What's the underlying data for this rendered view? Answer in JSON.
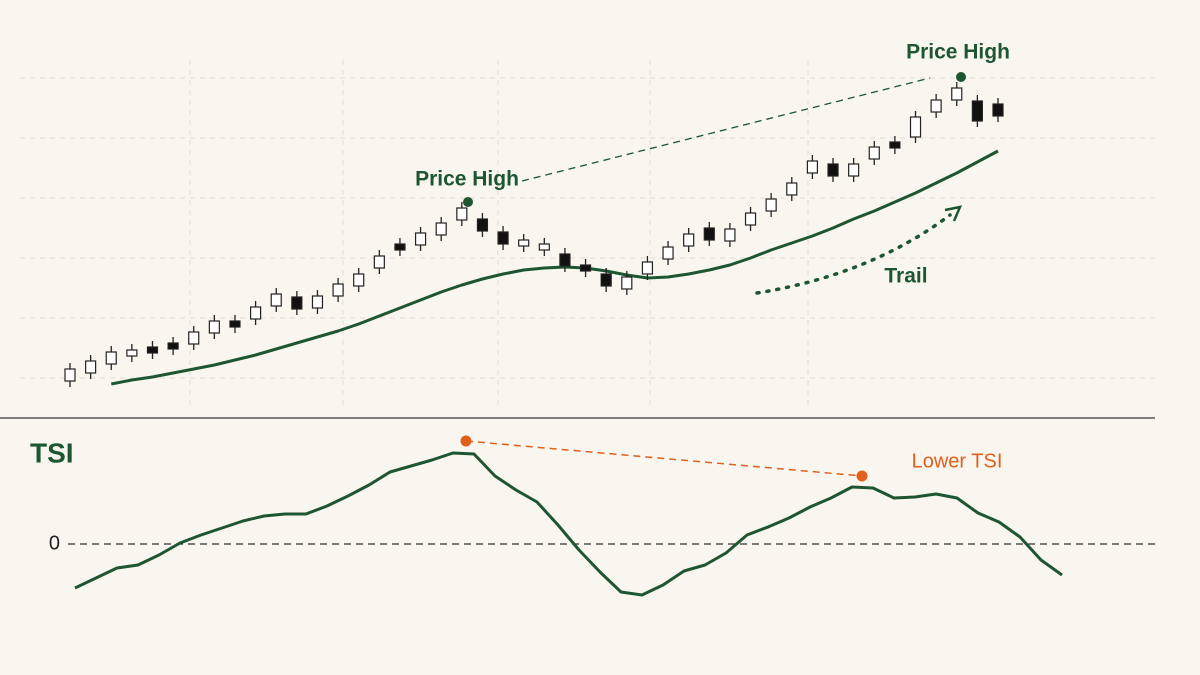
{
  "chart_data": [
    {
      "type": "candlestick",
      "categories": [
        null,
        null,
        null,
        null,
        null,
        null,
        null,
        null,
        null,
        null,
        null,
        null,
        null,
        null,
        null,
        null,
        null,
        null,
        null,
        null,
        null,
        null,
        null,
        null,
        null,
        null,
        null,
        null,
        null,
        null,
        null,
        null,
        null,
        null,
        null,
        null,
        null,
        null,
        null,
        null,
        null,
        null,
        null,
        null,
        null,
        null
      ],
      "open": [
        1.9,
        2.7,
        3.6,
        4.4,
        5.3,
        5.7,
        5.6,
        6.7,
        7.9,
        8.1,
        9.4,
        10.3,
        9.2,
        10.4,
        11.4,
        13.2,
        15.6,
        15.5,
        16.5,
        18.0,
        18.1,
        16.8,
        15.4,
        15.0,
        14.6,
        13.5,
        12.6,
        11.1,
        12.6,
        14.1,
        15.4,
        17.2,
        15.9,
        17.5,
        18.9,
        20.5,
        22.7,
        23.6,
        22.4,
        24.1,
        25.8,
        26.3,
        28.8,
        30.0,
        29.9,
        29.6
      ],
      "high": [
        3.7,
        4.5,
        5.4,
        5.6,
        5.9,
        6.3,
        7.4,
        8.5,
        8.5,
        9.9,
        11.2,
        10.9,
        11.0,
        12.2,
        13.2,
        15.0,
        16.2,
        17.3,
        18.3,
        19.8,
        18.7,
        17.4,
        16.6,
        16.2,
        15.2,
        14.1,
        13.2,
        12.9,
        14.4,
        15.9,
        17.2,
        17.8,
        17.7,
        19.3,
        20.7,
        22.3,
        24.5,
        24.2,
        24.2,
        25.9,
        26.4,
        28.9,
        30.6,
        31.8,
        30.5,
        30.2
      ],
      "low": [
        1.3,
        2.1,
        3.0,
        3.8,
        4.1,
        4.5,
        5.0,
        6.1,
        6.7,
        7.5,
        8.8,
        8.5,
        8.6,
        9.8,
        10.8,
        12.6,
        14.4,
        14.9,
        15.9,
        17.4,
        16.3,
        15.0,
        14.8,
        14.4,
        12.8,
        12.3,
        10.8,
        10.5,
        12.0,
        13.5,
        14.8,
        15.4,
        15.3,
        16.9,
        18.3,
        19.9,
        22.1,
        21.8,
        21.8,
        23.5,
        24.6,
        25.7,
        28.2,
        29.4,
        27.3,
        27.8
      ],
      "close": [
        3.1,
        3.9,
        4.8,
        5.0,
        4.7,
        5.1,
        6.8,
        7.9,
        7.3,
        9.3,
        10.6,
        9.1,
        10.4,
        11.6,
        12.6,
        14.4,
        15.0,
        16.7,
        17.7,
        19.2,
        16.9,
        15.6,
        16.0,
        15.6,
        13.4,
        12.9,
        11.4,
        12.3,
        13.8,
        15.3,
        16.6,
        16.0,
        17.1,
        18.7,
        20.1,
        21.7,
        23.9,
        22.4,
        23.6,
        25.3,
        25.2,
        28.3,
        30.0,
        31.2,
        27.9,
        28.4
      ],
      "up_color": "#ffffff",
      "down_color": "#111111",
      "series": [
        {
          "name": "Trail",
          "color": "#1e5631",
          "values": [
            null,
            null,
            1.6,
            2.0,
            2.3,
            2.7,
            3.1,
            3.5,
            4.0,
            4.5,
            5.1,
            5.7,
            6.3,
            6.9,
            7.6,
            8.4,
            9.2,
            10.0,
            10.8,
            11.5,
            12.1,
            12.6,
            13.0,
            13.2,
            13.3,
            13.2,
            12.9,
            12.5,
            12.2,
            12.3,
            12.6,
            13.0,
            13.5,
            14.2,
            15.0,
            15.7,
            16.4,
            17.2,
            18.1,
            18.9,
            19.8,
            20.7,
            21.7,
            22.7,
            23.8,
            24.9
          ]
        }
      ],
      "annotations": [
        "Price High",
        "Price High"
      ],
      "ylim": [
        0,
        36
      ]
    },
    {
      "type": "line",
      "title": "TSI",
      "categories": [
        null,
        null,
        null,
        null,
        null,
        null,
        null,
        null,
        null,
        null,
        null,
        null,
        null,
        null,
        null,
        null,
        null,
        null,
        null,
        null,
        null,
        null,
        null,
        null,
        null,
        null,
        null,
        null,
        null,
        null,
        null,
        null,
        null,
        null,
        null,
        null,
        null,
        null,
        null,
        null,
        null,
        null,
        null,
        null,
        null,
        null,
        null,
        null
      ],
      "series": [
        {
          "color": "#1e5631",
          "values": [
            -0.44,
            -0.34,
            -0.24,
            -0.21,
            -0.11,
            0.01,
            0.09,
            0.16,
            0.23,
            0.28,
            0.3,
            0.3,
            0.38,
            0.48,
            0.59,
            0.72,
            0.78,
            0.84,
            0.91,
            0.9,
            0.68,
            0.54,
            0.42,
            0.19,
            -0.06,
            -0.28,
            -0.48,
            -0.51,
            -0.41,
            -0.27,
            -0.21,
            -0.09,
            0.09,
            0.17,
            0.26,
            0.37,
            0.46,
            0.57,
            0.56,
            0.46,
            0.47,
            0.5,
            0.46,
            0.31,
            0.22,
            0.07,
            -0.16,
            -0.31
          ]
        }
      ],
      "annotations": [
        "Lower TSI"
      ],
      "ylim": [
        -0.76,
        1.12
      ],
      "yticks": [
        0
      ]
    }
  ]
}
